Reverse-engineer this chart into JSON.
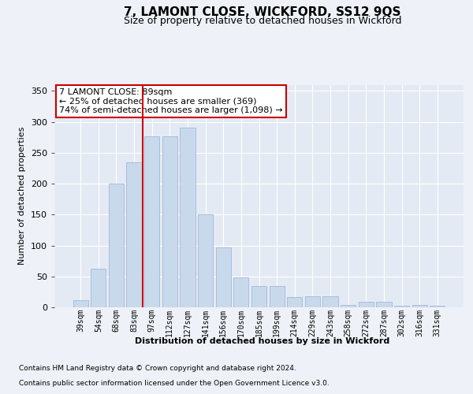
{
  "title": "7, LAMONT CLOSE, WICKFORD, SS12 9QS",
  "subtitle": "Size of property relative to detached houses in Wickford",
  "xlabel": "Distribution of detached houses by size in Wickford",
  "ylabel": "Number of detached properties",
  "footer_line1": "Contains HM Land Registry data © Crown copyright and database right 2024.",
  "footer_line2": "Contains public sector information licensed under the Open Government Licence v3.0.",
  "annotation_line1": "7 LAMONT CLOSE: 89sqm",
  "annotation_line2": "← 25% of detached houses are smaller (369)",
  "annotation_line3": "74% of semi-detached houses are larger (1,098) →",
  "bar_color": "#c9d9ec",
  "bar_edge_color": "#a0b8d8",
  "vline_color": "#cc0000",
  "annotation_box_edge": "#cc0000",
  "background_color": "#eef2f8",
  "plot_bg_color": "#e4eaf4",
  "categories": [
    "39sqm",
    "54sqm",
    "68sqm",
    "83sqm",
    "97sqm",
    "112sqm",
    "127sqm",
    "141sqm",
    "156sqm",
    "170sqm",
    "185sqm",
    "199sqm",
    "214sqm",
    "229sqm",
    "243sqm",
    "258sqm",
    "272sqm",
    "287sqm",
    "302sqm",
    "316sqm",
    "331sqm"
  ],
  "values": [
    12,
    63,
    200,
    235,
    277,
    277,
    290,
    150,
    97,
    48,
    34,
    34,
    17,
    18,
    18,
    4,
    9,
    9,
    2,
    4,
    2
  ],
  "ylim": [
    0,
    360
  ],
  "yticks": [
    0,
    50,
    100,
    150,
    200,
    250,
    300,
    350
  ],
  "vline_x_index": 3.5,
  "title_fontsize": 11,
  "subtitle_fontsize": 9,
  "ylabel_fontsize": 8,
  "xlabel_fontsize": 8,
  "tick_fontsize": 8,
  "xtick_fontsize": 7,
  "footer_fontsize": 6.5,
  "annotation_fontsize": 8
}
